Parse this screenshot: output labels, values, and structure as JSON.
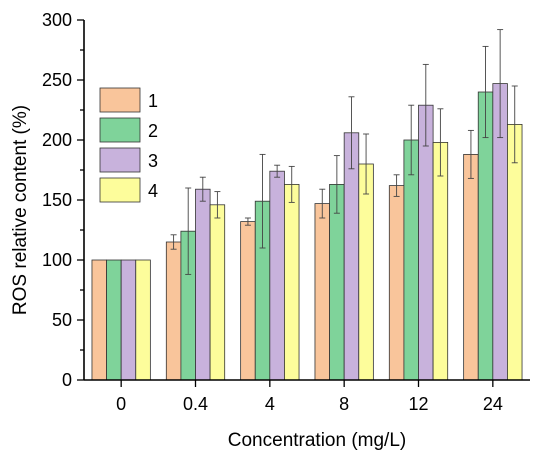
{
  "chart_data": {
    "type": "bar",
    "title": "",
    "xlabel": "Concentration (mg/L)",
    "ylabel": "ROS relative content (%)",
    "ylim": [
      0,
      300
    ],
    "yticks": [
      "0",
      "50",
      "100",
      "150",
      "200",
      "250",
      "300"
    ],
    "categories": [
      "0",
      "0.4",
      "4",
      "8",
      "12",
      "24"
    ],
    "legend_position": "top-left",
    "series": [
      {
        "name": "1",
        "color": "#f9c59b",
        "values": [
          100,
          115,
          132,
          147,
          162,
          188
        ],
        "errors": [
          0,
          6,
          3,
          12,
          9,
          20
        ]
      },
      {
        "name": "2",
        "color": "#7fd39a",
        "values": [
          100,
          124,
          149,
          163,
          200,
          240
        ],
        "errors": [
          0,
          36,
          39,
          24,
          29,
          38
        ]
      },
      {
        "name": "3",
        "color": "#c8b2dc",
        "values": [
          100,
          159,
          174,
          206,
          229,
          247
        ],
        "errors": [
          0,
          10,
          5,
          30,
          34,
          45
        ]
      },
      {
        "name": "4",
        "color": "#fdfd9b",
        "values": [
          100,
          146,
          163,
          180,
          198,
          213
        ],
        "errors": [
          0,
          11,
          15,
          25,
          28,
          32
        ]
      }
    ]
  }
}
